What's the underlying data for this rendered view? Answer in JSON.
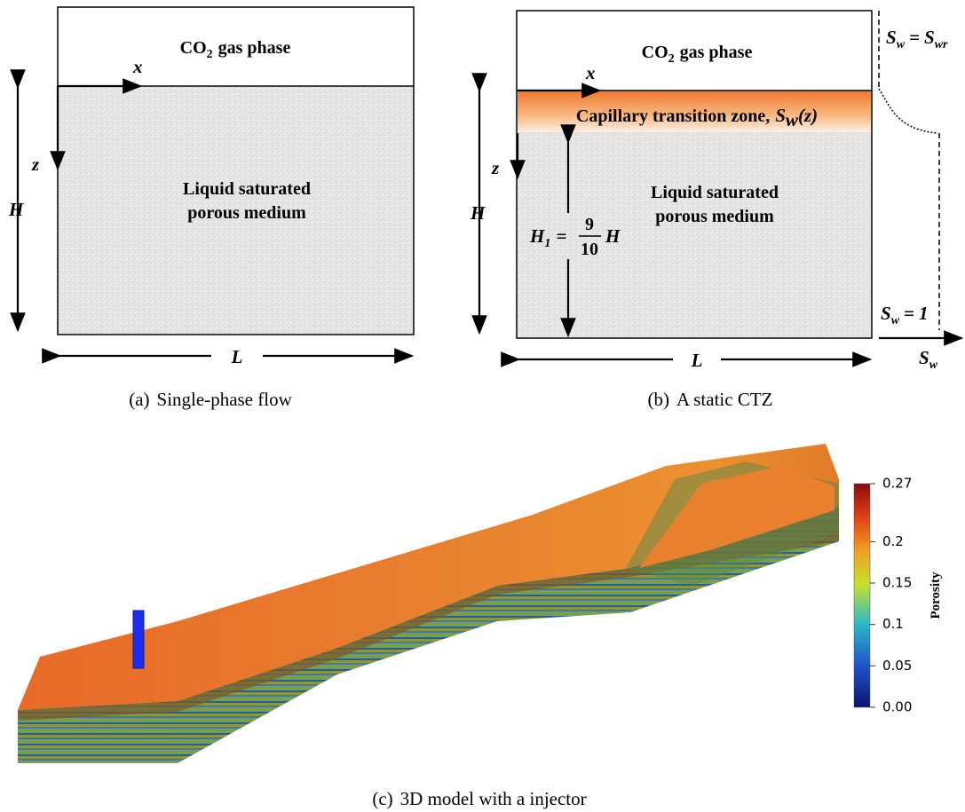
{
  "panel_a": {
    "gas_phase": {
      "main": "CO",
      "sub": "2",
      "rest": "gas phase"
    },
    "x_label": "x",
    "z_label": "z",
    "height_label": "H",
    "length_label": "L",
    "medium_lines": [
      "Liquid saturated",
      "porous medium"
    ],
    "caption": {
      "tag": "(a)",
      "text": "Single-phase flow"
    }
  },
  "panel_b": {
    "gas_phase": {
      "main": "CO",
      "sub": "2",
      "rest": "gas phase"
    },
    "x_label": "x",
    "z_label": "z",
    "height_label": "H",
    "length_label": "L",
    "ctz": {
      "text": "Capillary transition zone,",
      "symbol": "S",
      "sub": "w",
      "arg": "(z)"
    },
    "h1": {
      "symbol": "H",
      "sub": "1",
      "eq": "=",
      "num": "9",
      "den": "10",
      "rest": "H"
    },
    "medium_lines": [
      "Liquid saturated",
      "porous medium"
    ],
    "profile": {
      "top": {
        "symbol": "S",
        "sub": "w",
        "eq": "=",
        "rhs": "S",
        "rhs_sub": "wr"
      },
      "bottom": {
        "symbol": "S",
        "sub": "w",
        "eq": "=",
        "rhs": "1"
      },
      "axis": {
        "symbol": "S",
        "sub": "w"
      }
    },
    "caption": {
      "tag": "(b)",
      "text": "A static CTZ"
    }
  },
  "panel_c": {
    "colorbar": {
      "label": "Porosity",
      "lim": [
        0,
        0.27
      ],
      "ticks": [
        0.27,
        0.2,
        0.15,
        0.1,
        0.05,
        {
          "value": 0,
          "label": "0.00"
        }
      ]
    },
    "caption": {
      "tag": "(c)",
      "text": "3D model with a injector"
    }
  }
}
